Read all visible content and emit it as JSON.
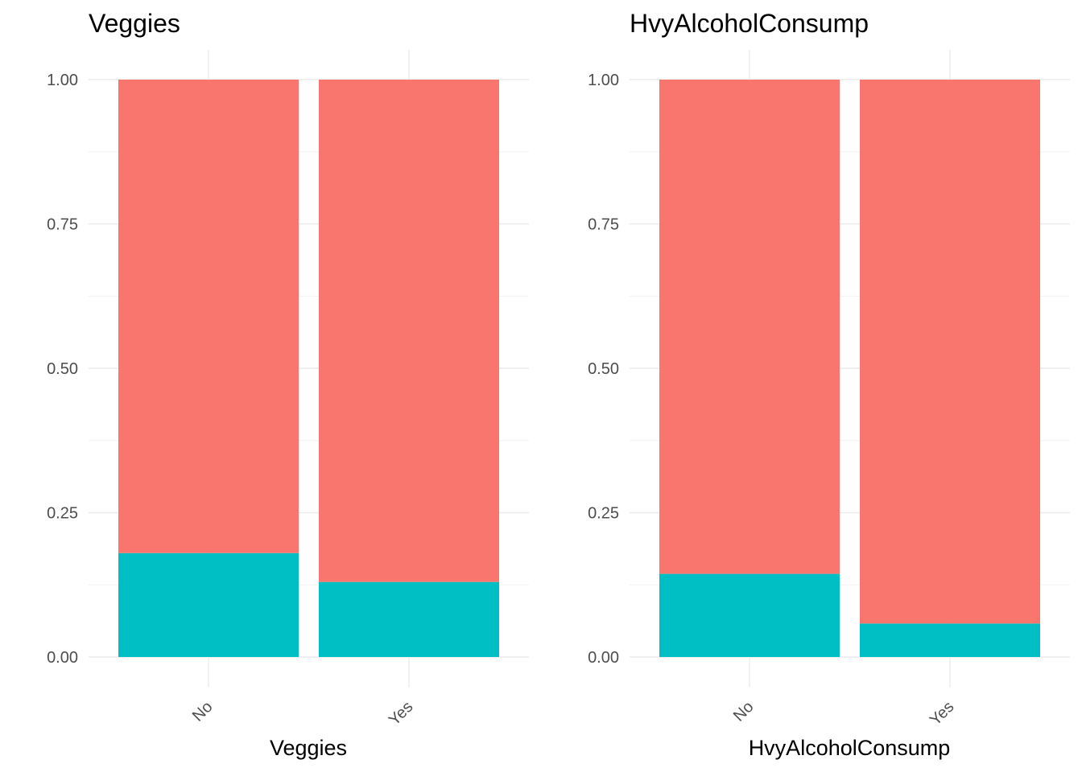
{
  "colors": {
    "segment_top": "#F8766D",
    "segment_bottom": "#00BFC4"
  },
  "chart_data": [
    {
      "type": "bar",
      "stacked": true,
      "title": "Veggies",
      "xlabel": "Veggies",
      "ylabel": "",
      "ylim": [
        0,
        1
      ],
      "yticks": [
        "0.00",
        "0.25",
        "0.50",
        "0.75",
        "1.00"
      ],
      "categories": [
        "No",
        "Yes"
      ],
      "series": [
        {
          "values": [
            0.18,
            0.13
          ]
        },
        {
          "values": [
            0.82,
            0.87
          ]
        }
      ],
      "grid": true,
      "legend": "none"
    },
    {
      "type": "bar",
      "stacked": true,
      "title": "HvyAlcoholConsump",
      "xlabel": "HvyAlcoholConsump",
      "ylabel": "",
      "ylim": [
        0,
        1
      ],
      "yticks": [
        "0.00",
        "0.25",
        "0.50",
        "0.75",
        "1.00"
      ],
      "categories": [
        "No",
        "Yes"
      ],
      "series": [
        {
          "values": [
            0.144,
            0.058
          ]
        },
        {
          "values": [
            0.856,
            0.942
          ]
        }
      ],
      "grid": true,
      "legend": "none"
    }
  ]
}
